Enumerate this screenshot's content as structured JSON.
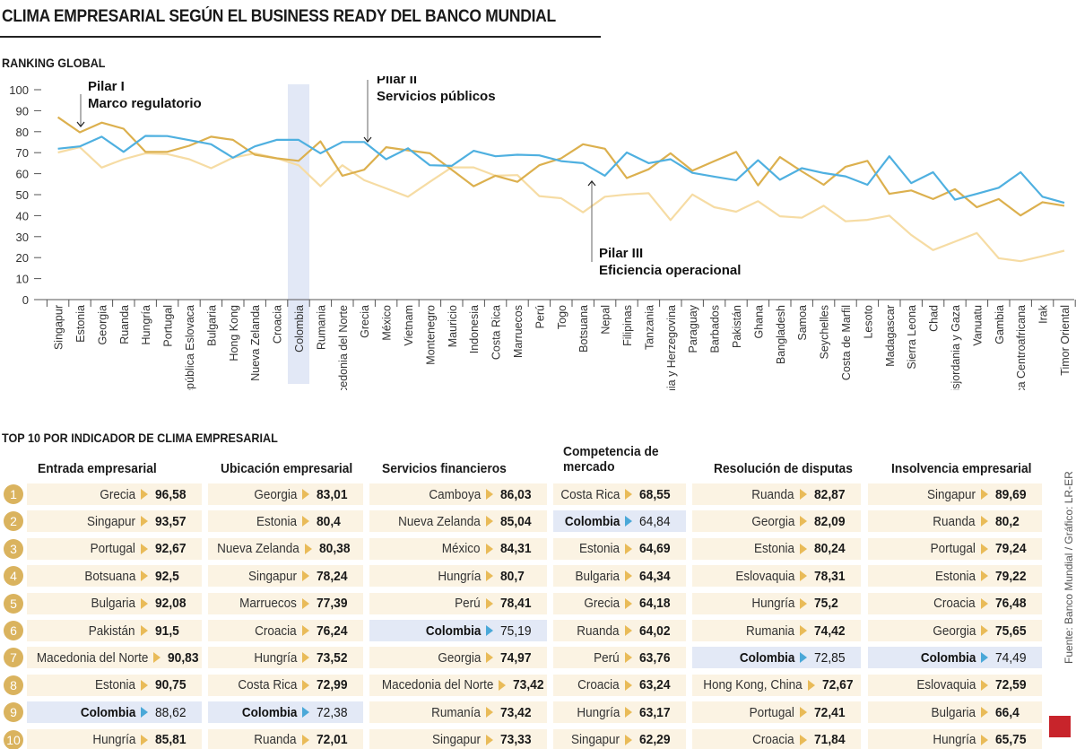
{
  "title": "CLIMA EMPRESARIAL SEGÚN EL BUSINESS READY DEL BANCO MUNDIAL",
  "subtitle": "RANKING GLOBAL",
  "chart_data": {
    "type": "line",
    "title": "RANKING GLOBAL",
    "ylim": [
      0,
      100
    ],
    "yticks": [
      0,
      10,
      20,
      30,
      40,
      50,
      60,
      70,
      80,
      90,
      100
    ],
    "highlight_category": "Colombia",
    "categories": [
      "Singapur",
      "Estonia",
      "Georgia",
      "Ruanda",
      "Hungría",
      "Portugal",
      "República Eslovaca",
      "Bulgaria",
      "Hong Kong",
      "Nueva Zelanda",
      "Croacia",
      "Colombia",
      "Rumania",
      "Macedonia del Norte",
      "Grecia",
      "México",
      "Vietnam",
      "Montenegro",
      "Mauricio",
      "Indonesia",
      "Costa Rica",
      "Marruecos",
      "Perú",
      "Togo",
      "Botsuana",
      "Nepal",
      "Filipinas",
      "Tanzania",
      "Bosnia y Herzegovina",
      "Paraguay",
      "Barbados",
      "Pakistán",
      "Ghana",
      "Bangladesh",
      "Samoa",
      "Seychelles",
      "Costa de Marfil",
      "Lesoto",
      "Madagascar",
      "Sierra Leona",
      "Chad",
      "Cisjordania y Gaza",
      "Vanuatu",
      "Gambia",
      "República Centroafricana",
      "Irak",
      "Timor Oriental"
    ],
    "series": [
      {
        "name": "Pilar I Marco regulatorio",
        "label_line1": "Pilar I",
        "label_line2": "Marco regulatorio",
        "color": "#dcb04e",
        "values": [
          86.9,
          79.7,
          84.3,
          81.4,
          70.4,
          70.4,
          73.3,
          77.6,
          76.1,
          69,
          67.3,
          66.1,
          75.4,
          59,
          61.9,
          72.6,
          71.1,
          69.7,
          61.9,
          54,
          59,
          56.1,
          64,
          67.3,
          74,
          71.9,
          57.9,
          62.1,
          69.7,
          61.4,
          66,
          70.4,
          54.4,
          67.9,
          61.1,
          54.7,
          63.3,
          66.1,
          50.4,
          52,
          47.9,
          52.6,
          44,
          47.9,
          40.1,
          46.4,
          44.7
        ]
      },
      {
        "name": "Pilar II Servicios públicos",
        "label_line1": "Pilar II",
        "label_line2": "Servicios públicos",
        "color": "#4fb0e0",
        "values": [
          71.9,
          73,
          77.6,
          70.4,
          78,
          77.9,
          76,
          74,
          67.6,
          73,
          76.1,
          76.1,
          69.7,
          75.1,
          75.1,
          66.9,
          72.1,
          64,
          63.7,
          70.9,
          68.3,
          69,
          68.7,
          66,
          65,
          59,
          70.1,
          65,
          66.9,
          60.4,
          58.6,
          56.9,
          66.4,
          57.1,
          62.6,
          60.3,
          58.7,
          54.7,
          68.3,
          55.5,
          60.7,
          47.6,
          50.4,
          53.3,
          60.7,
          49,
          46.1
        ]
      },
      {
        "name": "Pilar III Eficiencia operacional",
        "label_line1": "Pilar III",
        "label_line2": "Eficiencia operacional",
        "color": "#f6dca4",
        "values": [
          70.1,
          72.6,
          62.9,
          66.9,
          69.7,
          69.3,
          66.9,
          62.6,
          67.6,
          69.7,
          67.3,
          64,
          54,
          64,
          56.9,
          53,
          49,
          56.1,
          63,
          63,
          59,
          59.3,
          49.3,
          48.3,
          41.6,
          49,
          50.1,
          50.7,
          37.9,
          50.1,
          44,
          41.9,
          46.9,
          39.7,
          39,
          44.7,
          37.3,
          38,
          40,
          30.8,
          23.6,
          27.6,
          31.7,
          19.7,
          18.3,
          20.7,
          23.3
        ]
      }
    ]
  },
  "table": {
    "title": "TOP 10 POR INDICADOR DE CLIMA EMPRESARIAL",
    "ranks": [
      "1",
      "2",
      "3",
      "4",
      "5",
      "6",
      "7",
      "8",
      "9",
      "10"
    ],
    "highlight": "Colombia",
    "columns": [
      {
        "header": "Entrada empresarial",
        "rows": [
          [
            "Grecia",
            "96,58"
          ],
          [
            "Singapur",
            "93,57"
          ],
          [
            "Portugal",
            "92,67"
          ],
          [
            "Botsuana",
            "92,5"
          ],
          [
            "Bulgaria",
            "92,08"
          ],
          [
            "Pakistán",
            "91,5"
          ],
          [
            "Macedonia del Norte",
            "90,83"
          ],
          [
            "Estonia",
            "90,75"
          ],
          [
            "Colombia",
            "88,62"
          ],
          [
            "Hungría",
            "85,81"
          ]
        ]
      },
      {
        "header": "Ubicación empresarial",
        "rows": [
          [
            "Georgia",
            "83,01"
          ],
          [
            "Estonia",
            "80,4"
          ],
          [
            "Nueva Zelanda",
            "80,38"
          ],
          [
            "Singapur",
            "78,24"
          ],
          [
            "Marruecos",
            "77,39"
          ],
          [
            "Croacia",
            "76,24"
          ],
          [
            "Hungría",
            "73,52"
          ],
          [
            "Costa Rica",
            "72,99"
          ],
          [
            "Colombia",
            "72,38"
          ],
          [
            "Ruanda",
            "72,01"
          ]
        ]
      },
      {
        "header": "Servicios financieros",
        "rows": [
          [
            "Camboya",
            "86,03"
          ],
          [
            "Nueva Zelanda",
            "85,04"
          ],
          [
            "México",
            "84,31"
          ],
          [
            "Hungría",
            "80,7"
          ],
          [
            "Perú",
            "78,41"
          ],
          [
            "Colombia",
            "75,19"
          ],
          [
            "Georgia",
            "74,97"
          ],
          [
            "Macedonia del Norte",
            "73,42"
          ],
          [
            "Rumanía",
            "73,42"
          ],
          [
            "Singapur",
            "73,33"
          ]
        ]
      },
      {
        "header": "Competencia de mercado",
        "rows": [
          [
            "Costa Rica",
            "68,55"
          ],
          [
            "Colombia",
            "64,84"
          ],
          [
            "Estonia",
            "64,69"
          ],
          [
            "Bulgaria",
            "64,34"
          ],
          [
            "Grecia",
            "64,18"
          ],
          [
            "Ruanda",
            "64,02"
          ],
          [
            "Perú",
            "63,76"
          ],
          [
            "Croacia",
            "63,24"
          ],
          [
            "Hungría",
            "63,17"
          ],
          [
            "Singapur",
            "62,29"
          ]
        ]
      },
      {
        "header": "Resolución de disputas",
        "rows": [
          [
            "Ruanda",
            "82,87"
          ],
          [
            "Georgia",
            "82,09"
          ],
          [
            "Estonia",
            "80,24"
          ],
          [
            "Eslovaquia",
            "78,31"
          ],
          [
            "Hungría",
            "75,2"
          ],
          [
            "Rumania",
            "74,42"
          ],
          [
            "Colombia",
            "72,85"
          ],
          [
            "Hong Kong, China",
            "72,67"
          ],
          [
            "Portugal",
            "72,41"
          ],
          [
            "Croacia",
            "71,84"
          ]
        ]
      },
      {
        "header": "Insolvencia empresarial",
        "rows": [
          [
            "Singapur",
            "89,69"
          ],
          [
            "Ruanda",
            "80,2"
          ],
          [
            "Portugal",
            "79,24"
          ],
          [
            "Estonia",
            "79,22"
          ],
          [
            "Croacia",
            "76,48"
          ],
          [
            "Georgia",
            "75,65"
          ],
          [
            "Colombia",
            "74,49"
          ],
          [
            "Eslovaquia",
            "72,59"
          ],
          [
            "Bulgaria",
            "66,4"
          ],
          [
            "Hungría",
            "65,75"
          ]
        ]
      }
    ]
  },
  "source": "Fuente: Banco Mundial / Gráfico: LR-ER",
  "logo": "LR"
}
